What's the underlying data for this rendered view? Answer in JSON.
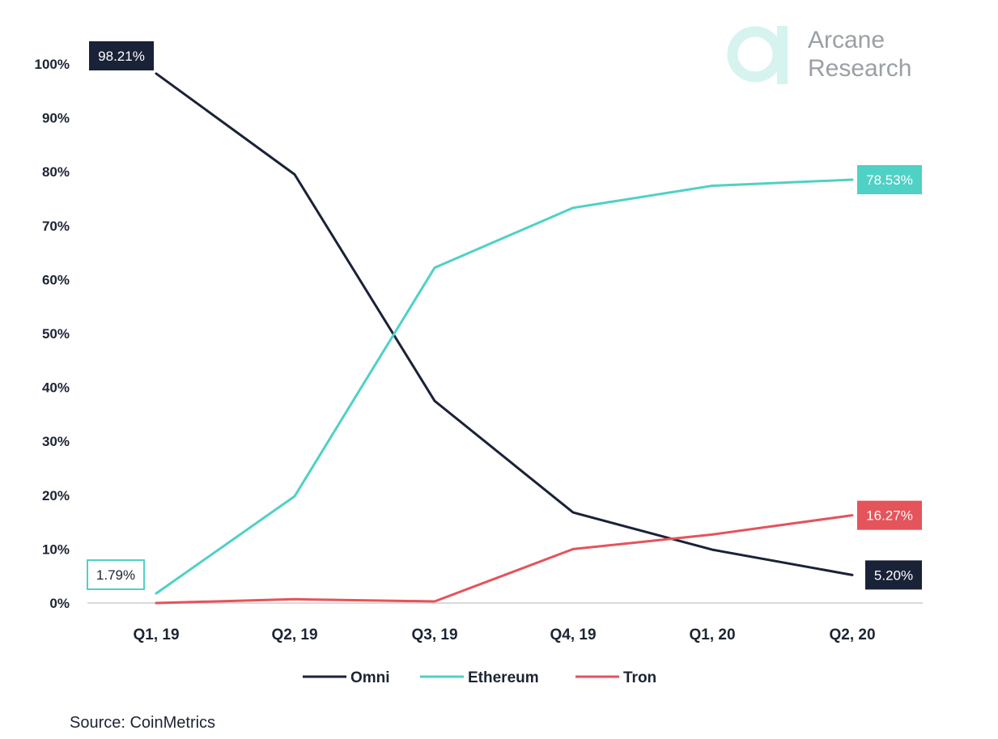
{
  "brand": {
    "line1": "Arcane",
    "line2": "Research",
    "icon": "arcane-logo-icon",
    "color": "#9aa0a6",
    "icon_color": "#d6f3ef"
  },
  "source": "Source: CoinMetrics",
  "chart_data": {
    "type": "line",
    "title": "",
    "xlabel": "",
    "ylabel": "",
    "categories": [
      "Q1, 19",
      "Q2, 19",
      "Q3, 19",
      "Q4, 19",
      "Q1, 20",
      "Q2, 20"
    ],
    "ylim": [
      0,
      100
    ],
    "yticks": [
      "0%",
      "10%",
      "20%",
      "30%",
      "40%",
      "50%",
      "60%",
      "70%",
      "80%",
      "90%",
      "100%"
    ],
    "grid": false,
    "legend_position": "bottom",
    "series": [
      {
        "name": "Omni",
        "color": "#1a2238",
        "values": [
          98.21,
          79.5,
          37.5,
          16.8,
          9.9,
          5.2
        ]
      },
      {
        "name": "Ethereum",
        "color": "#4fd1c5",
        "values": [
          1.79,
          19.8,
          62.2,
          73.3,
          77.4,
          78.53
        ]
      },
      {
        "name": "Tron",
        "color": "#e5535b",
        "values": [
          0.0,
          0.7,
          0.3,
          10.0,
          12.7,
          16.27
        ]
      }
    ],
    "annotations": [
      {
        "text": "98.21%",
        "series": "Omni",
        "index": 0,
        "style": "filled",
        "bg": "#1a2238",
        "fg": "#ffffff"
      },
      {
        "text": "5.20%",
        "series": "Omni",
        "index": 5,
        "style": "filled",
        "bg": "#1a2238",
        "fg": "#ffffff"
      },
      {
        "text": "78.53%",
        "series": "Ethereum",
        "index": 5,
        "style": "filled",
        "bg": "#4fd1c5",
        "fg": "#ffffff"
      },
      {
        "text": "1.79%",
        "series": "Ethereum",
        "index": 0,
        "style": "outline",
        "bg": "#ffffff",
        "fg": "#1c2433",
        "border": "#4fd1c5"
      },
      {
        "text": "16.27%",
        "series": "Tron",
        "index": 5,
        "style": "filled",
        "bg": "#e5535b",
        "fg": "#ffffff"
      }
    ]
  }
}
